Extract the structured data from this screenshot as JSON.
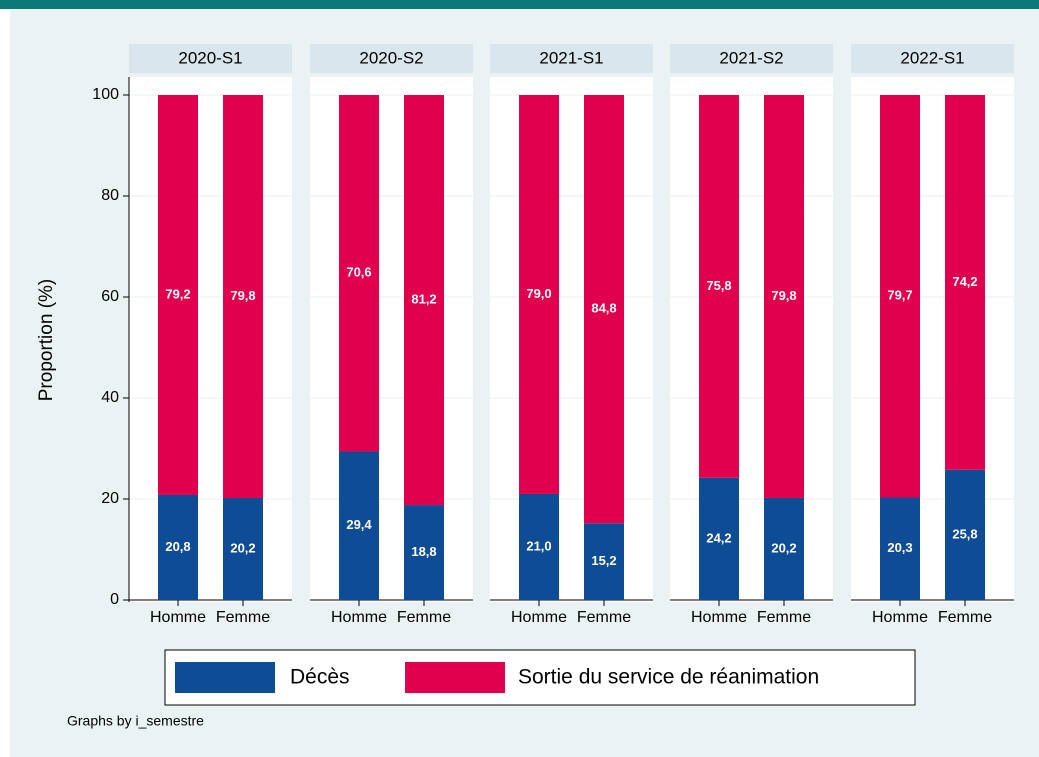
{
  "chart_data": {
    "type": "bar",
    "stacked": true,
    "ylabel": "Proportion (%)",
    "note": "Graphs by i_semestre",
    "ylim": [
      0,
      100
    ],
    "yticks": [
      0,
      20,
      40,
      60,
      80,
      100
    ],
    "grid": true,
    "legend": "bottom",
    "categories": [
      "Homme",
      "Femme"
    ],
    "series": [
      {
        "name": "Décès",
        "color": "#0f4c96"
      },
      {
        "name": "Sortie du service de réanimation",
        "color": "#e0004d"
      }
    ],
    "panels": [
      {
        "title": "2020-S1",
        "series": [
          {
            "values": [
              20.8,
              20.2
            ],
            "value_labels": [
              "20,8",
              "20,2"
            ]
          },
          {
            "values": [
              79.2,
              79.8
            ],
            "value_labels": [
              "79,2",
              "79,8"
            ]
          }
        ]
      },
      {
        "title": "2020-S2",
        "series": [
          {
            "values": [
              29.4,
              18.8
            ],
            "value_labels": [
              "29,4",
              "18,8"
            ]
          },
          {
            "values": [
              70.6,
              81.2
            ],
            "value_labels": [
              "70,6",
              "81,2"
            ]
          }
        ]
      },
      {
        "title": "2021-S1",
        "series": [
          {
            "values": [
              21.0,
              15.2
            ],
            "value_labels": [
              "21,0",
              "15,2"
            ]
          },
          {
            "values": [
              79.0,
              84.8
            ],
            "value_labels": [
              "79,0",
              "84,8"
            ]
          }
        ]
      },
      {
        "title": "2021-S2",
        "series": [
          {
            "values": [
              24.2,
              20.2
            ],
            "value_labels": [
              "24,2",
              "20,2"
            ]
          },
          {
            "values": [
              75.8,
              79.8
            ],
            "value_labels": [
              "75,8",
              "79,8"
            ]
          }
        ]
      },
      {
        "title": "2022-S1",
        "series": [
          {
            "values": [
              20.3,
              25.8
            ],
            "value_labels": [
              "20,3",
              "25,8"
            ]
          },
          {
            "values": [
              79.7,
              74.2
            ],
            "value_labels": [
              "79,7",
              "74,2"
            ]
          }
        ]
      }
    ]
  }
}
